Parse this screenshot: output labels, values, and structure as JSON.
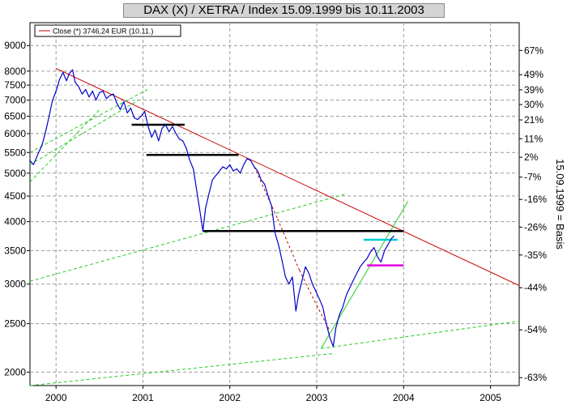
{
  "chart_data": {
    "type": "line",
    "title": "DAX (X) / XETRA / Index 15.09.1999 bis 10.11.2003",
    "y2label": "15.09.1999 = Basis",
    "yscale": "log",
    "ylim": [
      1880,
      10000
    ],
    "xlim": [
      1999.7,
      2005.33
    ],
    "grid": true,
    "legend": {
      "position": "top-left",
      "entries": [
        "Close (*) 3746,24 EUR (10.11.)"
      ]
    },
    "left_ticks": [
      {
        "value": 9000,
        "label": "9000"
      },
      {
        "value": 8000,
        "label": "8000"
      },
      {
        "value": 7500,
        "label": "7500"
      },
      {
        "value": 7000,
        "label": "7000"
      },
      {
        "value": 6500,
        "label": "6500"
      },
      {
        "value": 6000,
        "label": "6000"
      },
      {
        "value": 5500,
        "label": "5500"
      },
      {
        "value": 5000,
        "label": "5000"
      },
      {
        "value": 4500,
        "label": "4500"
      },
      {
        "value": 4000,
        "label": "4000"
      },
      {
        "value": 3500,
        "label": "3500"
      },
      {
        "value": 3000,
        "label": "3000"
      },
      {
        "value": 2500,
        "label": "2500"
      },
      {
        "value": 2000,
        "label": "2000"
      }
    ],
    "right_ticks": [
      {
        "value": 8800,
        "label": "67%"
      },
      {
        "value": 7870,
        "label": "49%"
      },
      {
        "value": 7340,
        "label": "39%"
      },
      {
        "value": 6860,
        "label": "30%"
      },
      {
        "value": 6390,
        "label": "21%"
      },
      {
        "value": 5860,
        "label": "11%"
      },
      {
        "value": 5380,
        "label": "2%"
      },
      {
        "value": 4910,
        "label": "-7%"
      },
      {
        "value": 4430,
        "label": "-16%"
      },
      {
        "value": 3900,
        "label": "-26%"
      },
      {
        "value": 3430,
        "label": "-35%"
      },
      {
        "value": 2950,
        "label": "-44%"
      },
      {
        "value": 2430,
        "label": "-54%"
      },
      {
        "value": 1950,
        "label": "-63%"
      }
    ],
    "x_ticks": [
      {
        "value": 2000,
        "label": "2000"
      },
      {
        "value": 2001,
        "label": "2001"
      },
      {
        "value": 2002,
        "label": "2002"
      },
      {
        "value": 2003,
        "label": "2003"
      },
      {
        "value": 2004,
        "label": "2004"
      },
      {
        "value": 2005,
        "label": "2005"
      }
    ],
    "series": [
      {
        "name": "Close (*) 3746,24 EUR (10.11.)",
        "color": "#0000cc",
        "points": [
          [
            1999.7,
            5300
          ],
          [
            1999.74,
            5200
          ],
          [
            1999.79,
            5450
          ],
          [
            1999.84,
            5700
          ],
          [
            1999.88,
            6050
          ],
          [
            1999.92,
            6500
          ],
          [
            1999.96,
            7000
          ],
          [
            2000.0,
            7300
          ],
          [
            2000.04,
            7700
          ],
          [
            2000.08,
            7950
          ],
          [
            2000.12,
            7650
          ],
          [
            2000.15,
            7900
          ],
          [
            2000.19,
            8050
          ],
          [
            2000.22,
            7600
          ],
          [
            2000.26,
            7450
          ],
          [
            2000.3,
            7200
          ],
          [
            2000.34,
            7350
          ],
          [
            2000.38,
            7100
          ],
          [
            2000.42,
            7300
          ],
          [
            2000.46,
            7000
          ],
          [
            2000.5,
            7250
          ],
          [
            2000.54,
            7300
          ],
          [
            2000.58,
            7050
          ],
          [
            2000.62,
            7150
          ],
          [
            2000.66,
            7200
          ],
          [
            2000.7,
            6900
          ],
          [
            2000.74,
            6700
          ],
          [
            2000.78,
            6950
          ],
          [
            2000.82,
            6600
          ],
          [
            2000.86,
            6750
          ],
          [
            2000.9,
            6450
          ],
          [
            2000.94,
            6400
          ],
          [
            2000.98,
            6500
          ],
          [
            2001.02,
            6650
          ],
          [
            2001.06,
            6200
          ],
          [
            2001.1,
            5900
          ],
          [
            2001.14,
            6100
          ],
          [
            2001.18,
            5800
          ],
          [
            2001.22,
            6150
          ],
          [
            2001.26,
            6250
          ],
          [
            2001.3,
            6050
          ],
          [
            2001.34,
            6200
          ],
          [
            2001.38,
            6000
          ],
          [
            2001.42,
            5850
          ],
          [
            2001.46,
            5800
          ],
          [
            2001.5,
            5600
          ],
          [
            2001.54,
            5300
          ],
          [
            2001.58,
            5100
          ],
          [
            2001.62,
            4600
          ],
          [
            2001.66,
            4150
          ],
          [
            2001.69,
            3830
          ],
          [
            2001.72,
            4250
          ],
          [
            2001.76,
            4550
          ],
          [
            2001.8,
            4850
          ],
          [
            2001.84,
            4950
          ],
          [
            2001.88,
            5050
          ],
          [
            2001.92,
            5150
          ],
          [
            2001.96,
            5100
          ],
          [
            2002.0,
            5200
          ],
          [
            2002.04,
            5050
          ],
          [
            2002.08,
            5100
          ],
          [
            2002.12,
            5000
          ],
          [
            2002.16,
            5200
          ],
          [
            2002.2,
            5350
          ],
          [
            2002.24,
            5300
          ],
          [
            2002.28,
            5150
          ],
          [
            2002.32,
            5050
          ],
          [
            2002.36,
            4850
          ],
          [
            2002.4,
            4750
          ],
          [
            2002.44,
            4500
          ],
          [
            2002.48,
            4300
          ],
          [
            2002.52,
            3800
          ],
          [
            2002.56,
            3600
          ],
          [
            2002.6,
            3350
          ],
          [
            2002.64,
            3100
          ],
          [
            2002.68,
            3000
          ],
          [
            2002.72,
            3100
          ],
          [
            2002.76,
            2650
          ],
          [
            2002.79,
            2850
          ],
          [
            2002.83,
            3050
          ],
          [
            2002.87,
            3250
          ],
          [
            2002.91,
            3150
          ],
          [
            2002.95,
            3000
          ],
          [
            2002.99,
            2900
          ],
          [
            2003.03,
            2800
          ],
          [
            2003.07,
            2700
          ],
          [
            2003.11,
            2500
          ],
          [
            2003.15,
            2350
          ],
          [
            2003.19,
            2250
          ],
          [
            2003.22,
            2450
          ],
          [
            2003.26,
            2600
          ],
          [
            2003.3,
            2700
          ],
          [
            2003.34,
            2850
          ],
          [
            2003.38,
            2950
          ],
          [
            2003.42,
            3050
          ],
          [
            2003.46,
            3150
          ],
          [
            2003.5,
            3250
          ],
          [
            2003.54,
            3320
          ],
          [
            2003.58,
            3380
          ],
          [
            2003.62,
            3480
          ],
          [
            2003.66,
            3550
          ],
          [
            2003.7,
            3400
          ],
          [
            2003.74,
            3320
          ],
          [
            2003.78,
            3500
          ],
          [
            2003.82,
            3600
          ],
          [
            2003.86,
            3700
          ],
          [
            2003.89,
            3746
          ]
        ]
      }
    ],
    "lines": [
      {
        "kind": "trend",
        "color": "#cc0000",
        "dash": "",
        "from": [
          2000.0,
          8100
        ],
        "to": [
          2005.33,
          2980
        ]
      },
      {
        "kind": "trend",
        "color": "#22cc22",
        "dash": "",
        "from": [
          2003.05,
          2230
        ],
        "to": [
          2004.05,
          4390
        ]
      },
      {
        "kind": "trend",
        "color": "#22cc22",
        "dash": "4 3",
        "from": [
          2003.05,
          2230
        ],
        "to": [
          2005.33,
          2530
        ]
      },
      {
        "kind": "trend",
        "color": "#22cc22",
        "dash": "4 3",
        "from": [
          1999.7,
          3040
        ],
        "to": [
          2003.35,
          4550
        ]
      },
      {
        "kind": "trend",
        "color": "#22cc22",
        "dash": "4 3",
        "from": [
          1999.7,
          4800
        ],
        "to": [
          2000.5,
          6700
        ]
      },
      {
        "kind": "trend",
        "color": "#22cc22",
        "dash": "4 3",
        "from": [
          1999.7,
          5200
        ],
        "to": [
          2000.95,
          7000
        ]
      },
      {
        "kind": "trend",
        "color": "#22cc22",
        "dash": "4 3",
        "from": [
          1999.7,
          5500
        ],
        "to": [
          2001.05,
          7350
        ]
      },
      {
        "kind": "trend",
        "color": "#22cc22",
        "dash": "4 3",
        "from": [
          1999.7,
          1880
        ],
        "to": [
          2003.2,
          2180
        ]
      },
      {
        "kind": "trend",
        "color": "#cc0000",
        "dash": "3 3",
        "from": [
          2002.28,
          5150
        ],
        "to": [
          2002.55,
          4050
        ]
      },
      {
        "kind": "trend",
        "color": "#cc0000",
        "dash": "3 3",
        "from": [
          2002.55,
          4050
        ],
        "to": [
          2002.8,
          3200
        ]
      },
      {
        "kind": "trend",
        "color": "#cc0000",
        "dash": "3 3",
        "from": [
          2002.8,
          3200
        ],
        "to": [
          2003.0,
          2720
        ]
      },
      {
        "kind": "trend",
        "color": "#cc0000",
        "dash": "3 3",
        "from": [
          2003.0,
          2720
        ],
        "to": [
          2003.15,
          2420
        ]
      },
      {
        "kind": "level",
        "color": "#000000",
        "dash": "",
        "from": [
          2000.87,
          6250
        ],
        "to": [
          2001.48,
          6250
        ]
      },
      {
        "kind": "level",
        "color": "#000000",
        "dash": "",
        "from": [
          2001.04,
          5440
        ],
        "to": [
          2002.1,
          5440
        ]
      },
      {
        "kind": "level",
        "color": "#000000",
        "dash": "",
        "from": [
          2001.69,
          3830
        ],
        "to": [
          2004.0,
          3830
        ]
      },
      {
        "kind": "level",
        "color": "#00cccc",
        "dash": "",
        "from": [
          2003.54,
          3680
        ],
        "to": [
          2003.93,
          3680
        ]
      },
      {
        "kind": "level",
        "color": "#dd00dd",
        "dash": "",
        "from": [
          2003.58,
          3270
        ],
        "to": [
          2004.0,
          3270
        ]
      }
    ]
  }
}
